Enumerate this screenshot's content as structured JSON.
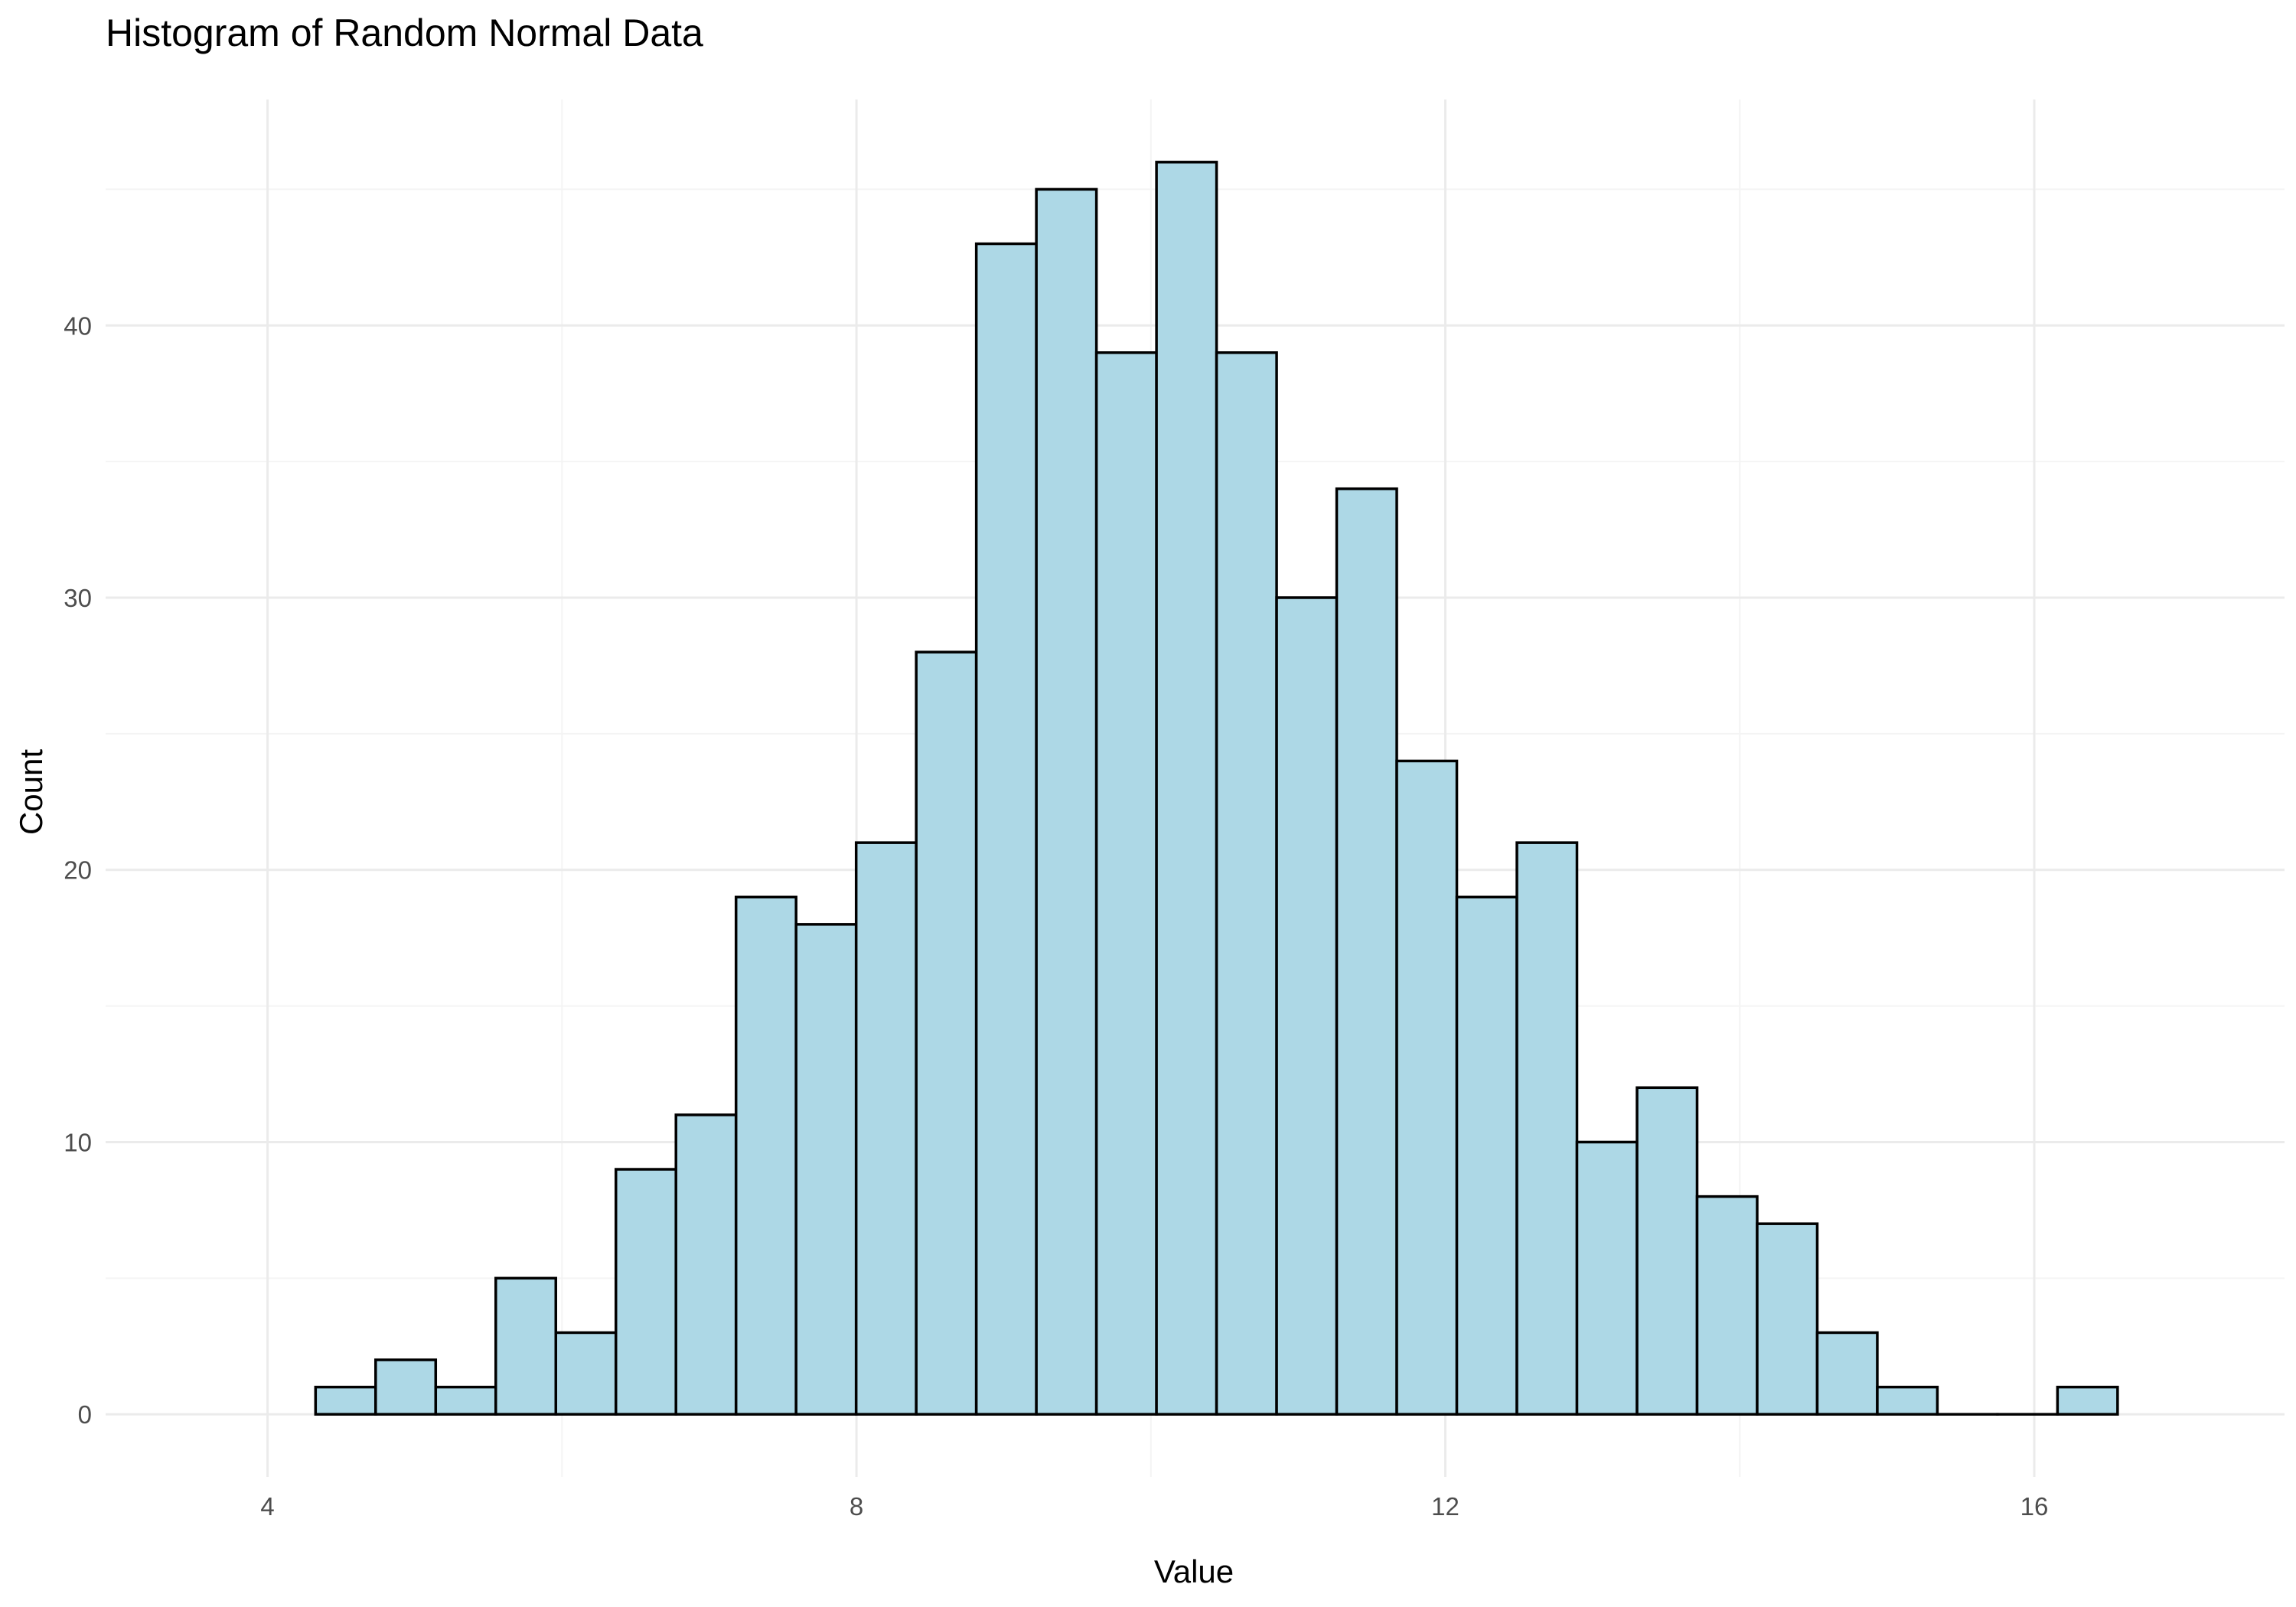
{
  "chart_data": {
    "type": "bar",
    "title": "Histogram of Random Normal Data",
    "xlabel": "Value",
    "ylabel": "Count",
    "bin_edges": [
      4.326,
      4.734,
      5.142,
      5.55,
      5.958,
      6.366,
      6.774,
      7.182,
      7.59,
      7.998,
      8.406,
      8.814,
      9.222,
      9.63,
      10.038,
      10.446,
      10.854,
      11.262,
      11.67,
      12.078,
      12.486,
      12.894,
      13.302,
      13.71,
      14.118,
      14.526,
      14.934,
      15.342,
      15.75,
      16.158,
      16.566
    ],
    "values": [
      1,
      2,
      1,
      5,
      3,
      9,
      11,
      19,
      18,
      21,
      28,
      43,
      45,
      39,
      46,
      39,
      30,
      34,
      24,
      19,
      21,
      10,
      12,
      8,
      7,
      3,
      1,
      0,
      0,
      1
    ],
    "xlim": [
      2.9,
      17.7
    ],
    "ylim": [
      -2.3,
      48.3
    ],
    "x_ticks": [
      4,
      8,
      12,
      16
    ],
    "x_tick_labels": [
      "4",
      "8",
      "12",
      "16"
    ],
    "y_ticks": [
      0,
      10,
      20,
      30,
      40
    ],
    "y_tick_labels": [
      "0",
      "10",
      "20",
      "30",
      "40"
    ],
    "grid": true,
    "bar_fill": "#add8e6",
    "bar_outline": "#000000",
    "background": "#ffffff"
  }
}
